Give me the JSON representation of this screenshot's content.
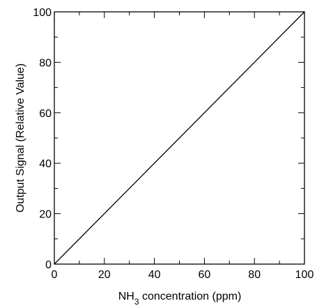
{
  "chart_data": {
    "type": "line",
    "xlabel": {
      "prefix": "NH",
      "subscript": "3",
      "suffix": " concentration (ppm)"
    },
    "ylabel": "Output Signal (Relative Value)",
    "xlim": [
      0,
      100
    ],
    "ylim": [
      0,
      100
    ],
    "x_ticks": [
      0,
      20,
      40,
      60,
      80,
      100
    ],
    "y_ticks": [
      0,
      20,
      40,
      60,
      80,
      100
    ],
    "x_tick_labels": [
      "0",
      "20",
      "40",
      "60",
      "80",
      "100"
    ],
    "y_tick_labels": [
      "0",
      "20",
      "40",
      "60",
      "80",
      "100"
    ],
    "minor_tick_step": 10,
    "grid": false,
    "series": [
      {
        "x": [
          0,
          100
        ],
        "y": [
          0,
          100
        ],
        "color": "#000000"
      }
    ]
  }
}
